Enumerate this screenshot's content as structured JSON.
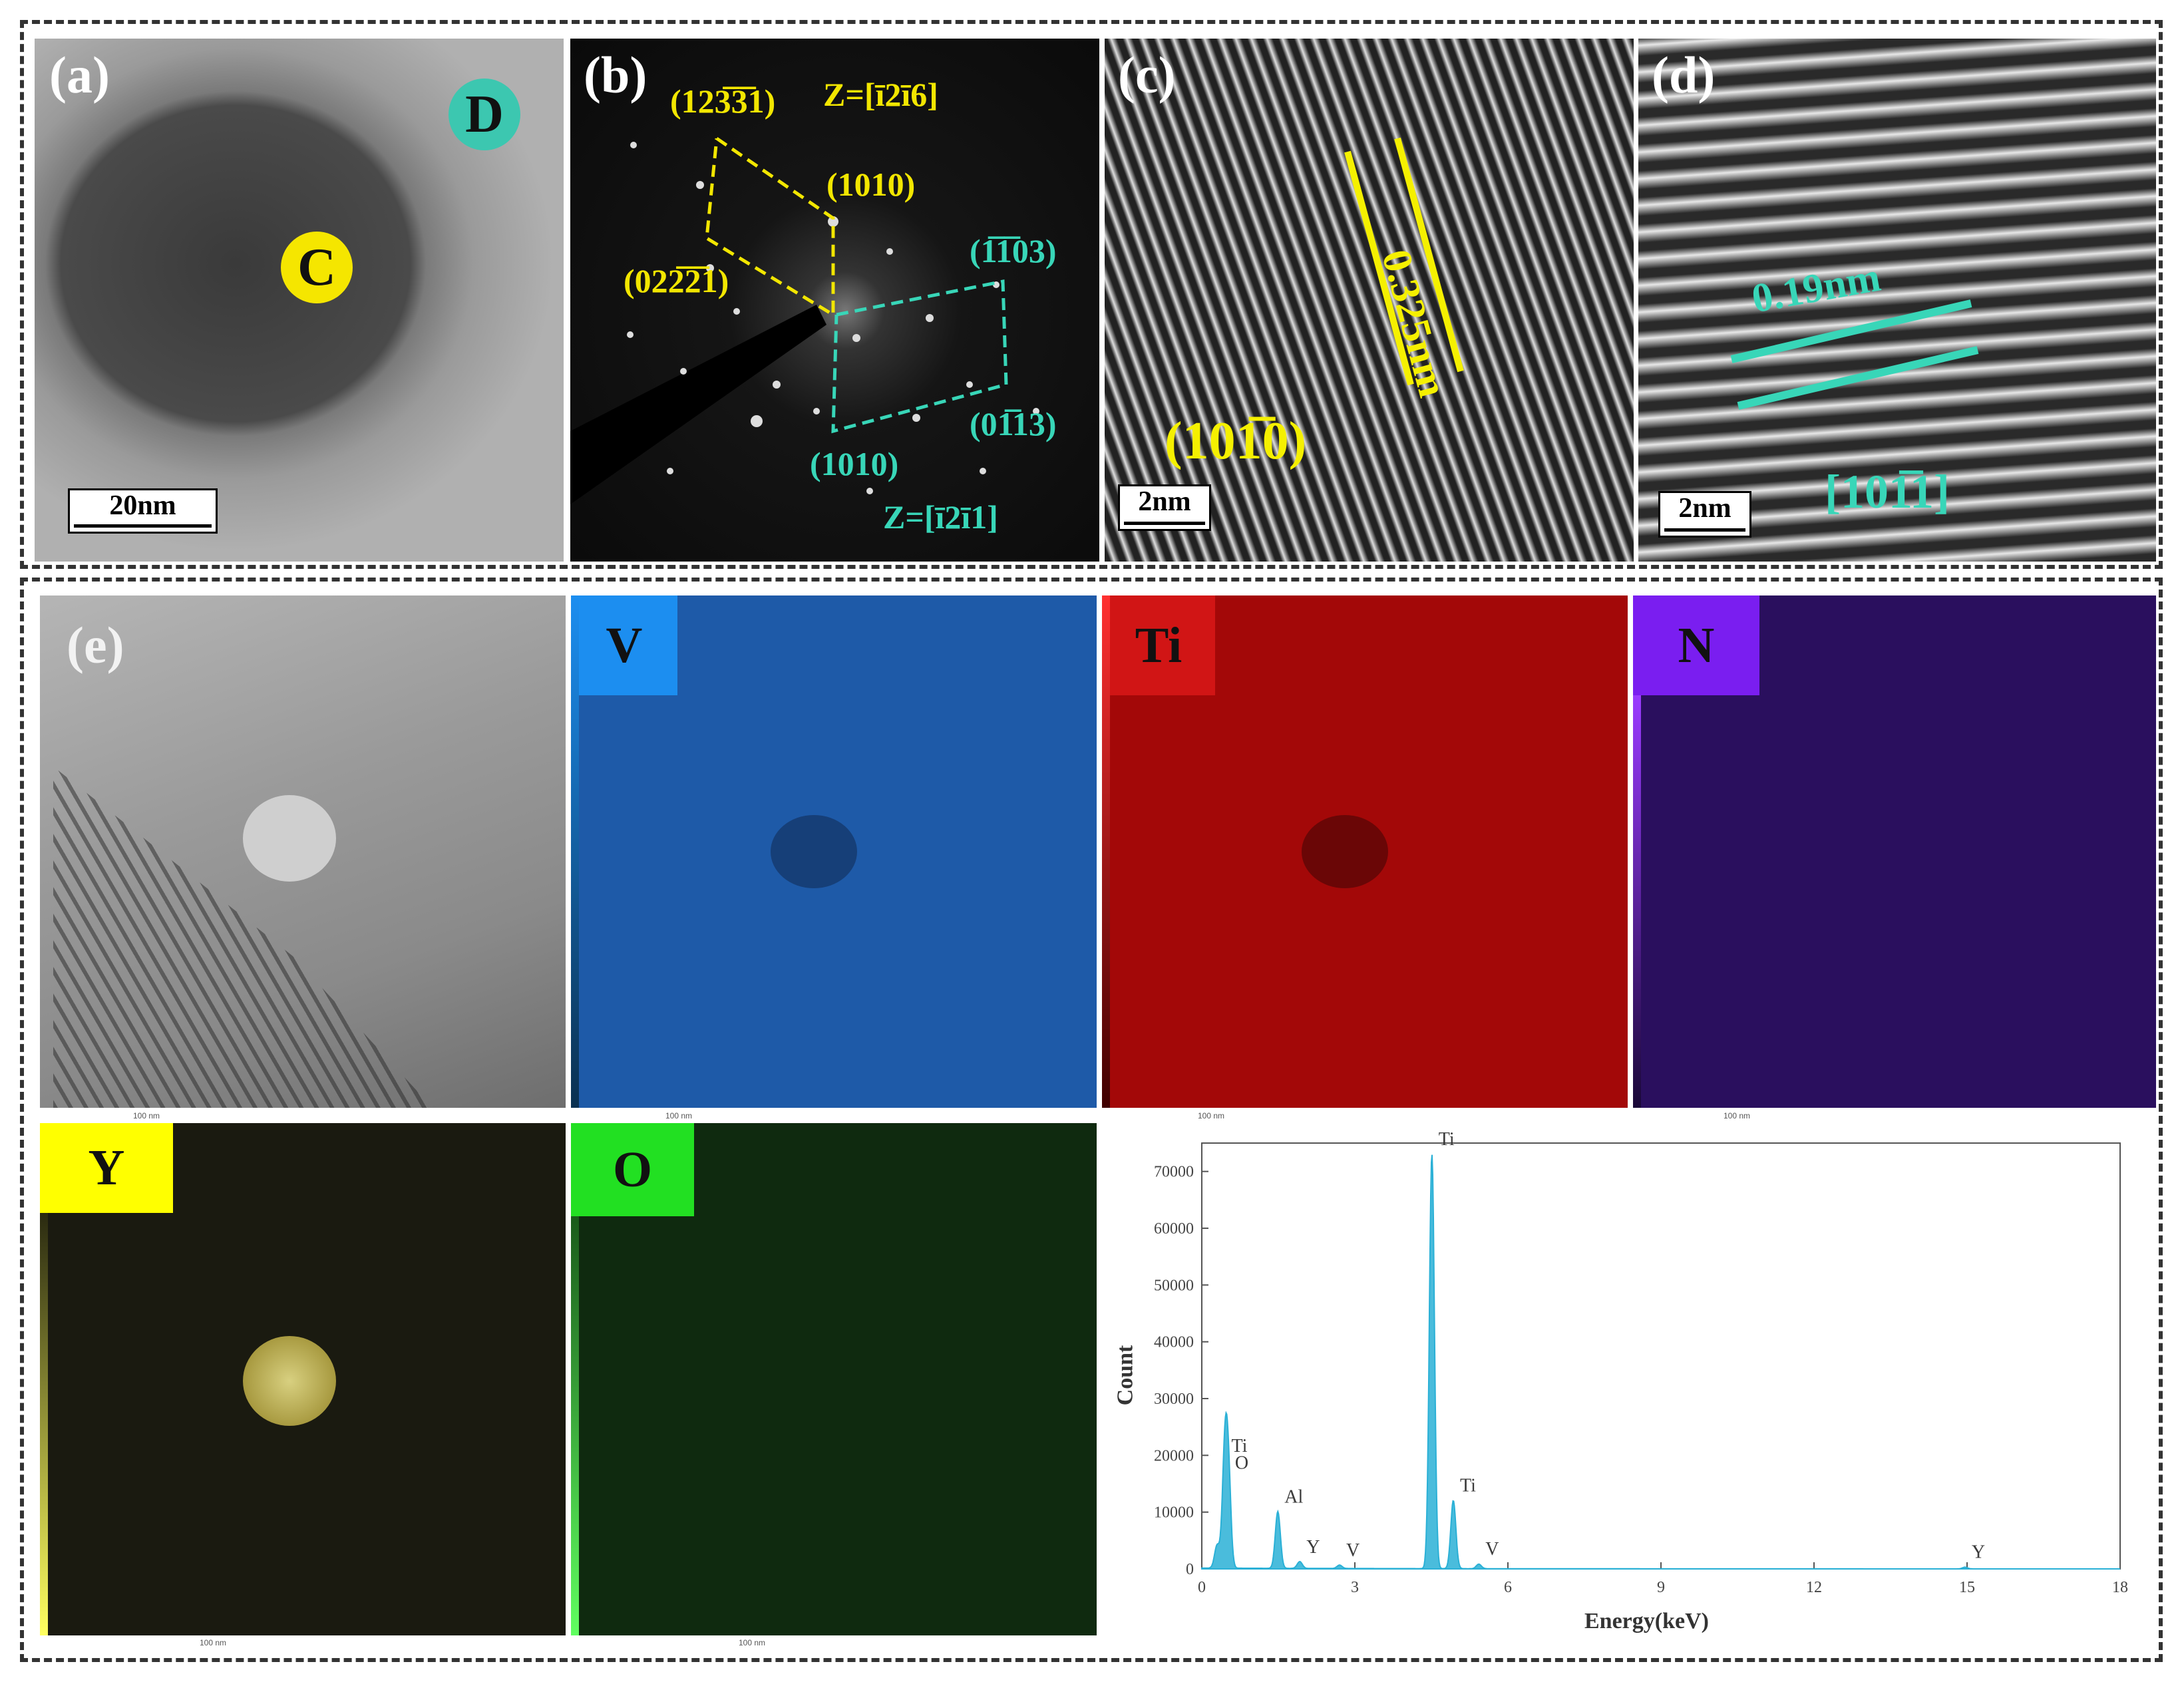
{
  "panels": {
    "a": {
      "label": "(a)",
      "scale": "20nm",
      "point_c": "C",
      "point_d": "D"
    },
    "b": {
      "label": "(b)",
      "zone_yellow": "Z=[ī2ī6]",
      "zone_cyan": "Z=[ī2ī1]",
      "spots": [
        "(123̅3̅1)",
        "(1010)",
        "(022̅2̅1)",
        "(1̅1̅03)",
        "(01̅13)",
        "(1010)"
      ]
    },
    "c": {
      "label": "(c)",
      "scale": "2nm",
      "spacing": "0.325nm",
      "plane": "(101̅0)"
    },
    "d": {
      "label": "(d)",
      "scale": "2nm",
      "spacing": "0.19nm",
      "plane": "[101̅1]"
    },
    "e": {
      "label": "(e)"
    }
  },
  "maps": [
    {
      "element": "V",
      "tile_color": "#1c8ef0",
      "map_color": "#1e5aa8"
    },
    {
      "element": "Ti",
      "tile_color": "#d11515",
      "map_color": "#a30808"
    },
    {
      "element": "N",
      "tile_color": "#7a1ef0",
      "map_color": "#2a0f5e"
    },
    {
      "element": "Y",
      "tile_color": "#ffff00",
      "map_color": "#1a1a10"
    },
    {
      "element": "O",
      "tile_color": "#22e022",
      "map_color": "#0f2a0f"
    }
  ],
  "map_scale": "100 nm",
  "colors": {
    "frame": "#333333",
    "cyan": "#38d6b8",
    "yellow": "#f2e600",
    "spectrum": "#2ab0d6"
  },
  "chart_data": {
    "type": "line",
    "xlabel": "Energy(keV)",
    "ylabel": "Count",
    "xlim": [
      0,
      18
    ],
    "ylim": [
      0,
      75000
    ],
    "xticks": [
      0,
      3,
      6,
      9,
      12,
      15,
      18
    ],
    "yticks": [
      0,
      10000,
      20000,
      30000,
      40000,
      50000,
      60000,
      70000
    ],
    "grid": false,
    "peaks": [
      {
        "x": 0.3,
        "y": 4000,
        "label": ""
      },
      {
        "x": 0.45,
        "y": 19000,
        "label": "Ti"
      },
      {
        "x": 0.52,
        "y": 16000,
        "label": "O"
      },
      {
        "x": 1.49,
        "y": 10000,
        "label": "Al"
      },
      {
        "x": 1.92,
        "y": 1200,
        "label": "Y"
      },
      {
        "x": 2.7,
        "y": 600,
        "label": "V"
      },
      {
        "x": 4.51,
        "y": 73000,
        "label": "Ti"
      },
      {
        "x": 4.93,
        "y": 12000,
        "label": "Ti"
      },
      {
        "x": 5.43,
        "y": 800,
        "label": "V"
      },
      {
        "x": 14.96,
        "y": 300,
        "label": "Y"
      }
    ]
  }
}
